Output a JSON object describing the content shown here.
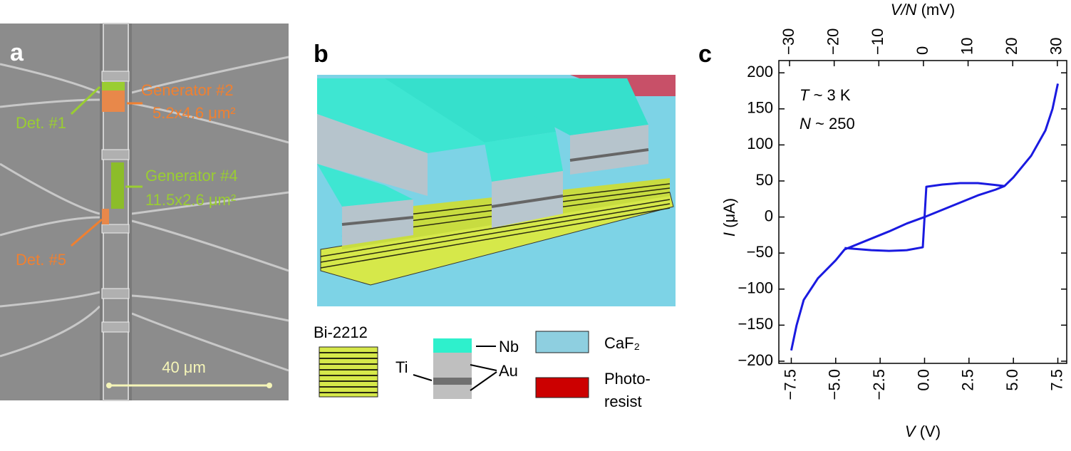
{
  "panel_a": {
    "label": "a",
    "gen2": "Generator #2",
    "gen2_size": "5.2x4.6 μm²",
    "det1": "Det. #1",
    "gen4": "Generator #4",
    "gen4_size": "11.5x2.6 μm²",
    "det5": "Det. #5",
    "scale": "40 μm"
  },
  "panel_b": {
    "label": "b",
    "bi": "Bi-2212",
    "nb": "Nb",
    "ti": "Ti",
    "au": "Au",
    "caf": "CaF₂",
    "photo": [
      "Photo-",
      "resist"
    ]
  },
  "chart_data": {
    "type": "line",
    "label": "c",
    "xlabel": {
      "symbol": "V",
      "unit": "(V)"
    },
    "ylabel": {
      "symbol": "I",
      "unit": "(μA)"
    },
    "x2label": {
      "symbol": "V/N",
      "unit": "(mV)"
    },
    "annotations": [
      {
        "symbol": "T",
        "text": "~ 3 K"
      },
      {
        "symbol": "N",
        "text": "~ 250"
      }
    ],
    "xlim": [
      -8.2,
      8.0
    ],
    "xticks": [
      {
        "value": -7.5,
        "label": "−7.5"
      },
      {
        "value": -5,
        "label": "−5.0"
      },
      {
        "value": -2.5,
        "label": "−2.5"
      },
      {
        "value": 0,
        "label": "0.0"
      },
      2.5,
      {
        "value": 5,
        "label": "5.0"
      },
      7.5
    ],
    "x2lim": [
      -32.4,
      32.1
    ],
    "x2ticks": [
      {
        "value": -30,
        "label": "−30"
      },
      {
        "value": -20,
        "label": "−20"
      },
      {
        "value": -10,
        "label": "−10"
      },
      0,
      10,
      20,
      30
    ],
    "ylim": [
      -203,
      217
    ],
    "yticks": [
      {
        "value": -200,
        "label": "−200"
      },
      {
        "value": -150,
        "label": "−150"
      },
      {
        "value": -100,
        "label": "−100"
      },
      {
        "value": -50,
        "label": "−50"
      },
      0,
      50,
      100,
      150,
      200
    ],
    "series": [
      {
        "color": "#1a1ae0",
        "x": [
          -7.5,
          -7.2,
          -6.8,
          -6.0,
          -5.0,
          -4.5,
          -3.0,
          -2.0,
          -1.0,
          0,
          1.0,
          2.0,
          3.0,
          4.0,
          4.5,
          5.0,
          6.0,
          6.8,
          7.2,
          7.5
        ],
        "values": [
          -185,
          -150,
          -115,
          -85,
          -60,
          -45,
          -30,
          -20,
          -9,
          0,
          10,
          20,
          30,
          38,
          43,
          55,
          85,
          120,
          150,
          185
        ]
      },
      {
        "color": "#1a1ae0",
        "x": [
          4.5,
          3.0,
          2.0,
          1.0,
          0.1,
          0,
          -0.1,
          -1.0,
          -2.0,
          -3.0,
          -4.5
        ],
        "values": [
          43,
          47,
          47,
          45,
          42,
          0,
          -42,
          -46,
          -47,
          -46,
          -43
        ]
      }
    ]
  }
}
